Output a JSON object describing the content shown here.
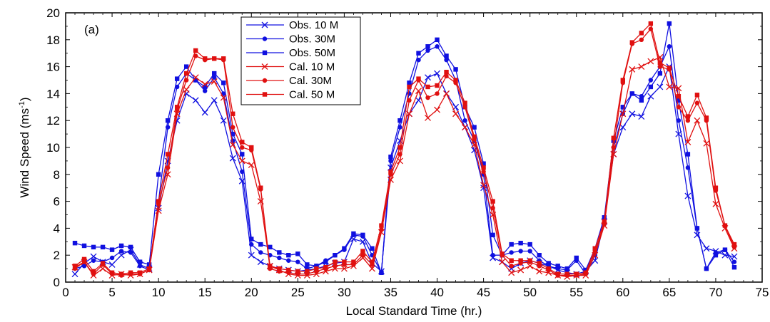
{
  "chart_data": {
    "type": "line",
    "panel_label": "(a)",
    "xlabel": "Local Standard Time (hr.)",
    "ylabel_main": "Wind Speed (ms",
    "ylabel_sup": "-1",
    "ylabel_close": ")",
    "xlim": [
      0,
      75
    ],
    "ylim": [
      0,
      20
    ],
    "xticks": [
      0,
      5,
      10,
      15,
      20,
      25,
      30,
      35,
      40,
      45,
      50,
      55,
      60,
      65,
      70,
      75
    ],
    "yticks": [
      0,
      2,
      4,
      6,
      8,
      10,
      12,
      14,
      16,
      18,
      20
    ],
    "grid": false,
    "legend_position": "top-center",
    "x": [
      1,
      2,
      3,
      4,
      5,
      6,
      7,
      8,
      9,
      10,
      11,
      12,
      13,
      14,
      15,
      16,
      17,
      18,
      19,
      20,
      21,
      22,
      23,
      24,
      25,
      26,
      27,
      28,
      29,
      30,
      31,
      32,
      33,
      34,
      35,
      36,
      37,
      38,
      39,
      40,
      41,
      42,
      43,
      44,
      45,
      46,
      47,
      48,
      49,
      50,
      51,
      52,
      53,
      54,
      55,
      56,
      57,
      58,
      59,
      60,
      61,
      62,
      63,
      64,
      65,
      66,
      67,
      68,
      69,
      70,
      71,
      72
    ],
    "series": [
      {
        "name": "Obs. 10 M",
        "color": "#1010e0",
        "marker": "x",
        "values": [
          0.6,
          1.4,
          1.9,
          1.5,
          1.3,
          2.0,
          2.4,
          1.3,
          1.0,
          5.5,
          9.0,
          12.0,
          14.0,
          13.5,
          12.6,
          13.5,
          12.0,
          9.2,
          7.5,
          2.0,
          1.5,
          1.2,
          1.0,
          0.9,
          0.8,
          0.9,
          1.0,
          1.2,
          1.4,
          1.5,
          3.2,
          3.0,
          1.4,
          0.8,
          8.5,
          10.5,
          12.5,
          13.5,
          15.2,
          15.5,
          14.0,
          13.0,
          11.5,
          9.8,
          7.0,
          1.8,
          1.5,
          1.0,
          1.4,
          1.6,
          1.4,
          1.2,
          0.9,
          0.7,
          0.6,
          0.8,
          1.6,
          4.5,
          9.5,
          11.5,
          12.5,
          12.3,
          13.8,
          14.5,
          16.0,
          11.0,
          6.4,
          3.5,
          2.5,
          2.3,
          2.0,
          1.9
        ]
      },
      {
        "name": "Obs. 30M",
        "color": "#1010e0",
        "marker": "circle",
        "values": [
          1.0,
          1.2,
          1.6,
          1.5,
          1.8,
          2.3,
          2.2,
          1.2,
          0.9,
          6.0,
          11.5,
          14.5,
          15.5,
          15.0,
          14.2,
          15.2,
          14.0,
          10.5,
          8.2,
          2.8,
          2.2,
          2.0,
          1.8,
          1.6,
          1.5,
          1.0,
          1.2,
          1.6,
          2.0,
          2.4,
          3.5,
          3.4,
          2.0,
          0.7,
          9.0,
          11.5,
          14.0,
          16.5,
          17.2,
          17.5,
          16.5,
          15.0,
          12.0,
          10.5,
          8.0,
          2.0,
          2.0,
          2.2,
          2.3,
          2.3,
          1.6,
          1.2,
          1.0,
          0.9,
          1.6,
          0.6,
          2.0,
          4.4,
          10.0,
          12.5,
          14.0,
          13.8,
          15.0,
          16.0,
          17.5,
          12.0,
          8.5,
          4.0,
          1.0,
          2.2,
          2.4,
          1.5
        ]
      },
      {
        "name": "Obs. 50M",
        "color": "#1010e0",
        "marker": "square",
        "values": [
          2.9,
          2.7,
          2.6,
          2.6,
          2.4,
          2.7,
          2.6,
          1.5,
          1.3,
          8.0,
          12.0,
          15.1,
          16.0,
          15.0,
          14.5,
          15.5,
          14.8,
          11.0,
          9.5,
          3.2,
          2.8,
          2.6,
          2.2,
          2.0,
          2.1,
          1.3,
          1.2,
          1.5,
          2.0,
          2.5,
          3.6,
          3.5,
          2.5,
          0.7,
          9.3,
          12.0,
          14.8,
          17.0,
          17.5,
          18.0,
          16.8,
          15.8,
          13.0,
          11.5,
          8.8,
          3.5,
          2.0,
          2.8,
          2.9,
          2.8,
          2.0,
          1.4,
          1.2,
          1.0,
          1.8,
          0.9,
          2.5,
          4.8,
          10.5,
          13.0,
          14.0,
          13.5,
          14.5,
          15.5,
          19.2,
          13.5,
          9.5,
          4.0,
          1.0,
          2.0,
          2.4,
          1.1
        ]
      },
      {
        "name": "Cal. 10 M",
        "color": "#e01010",
        "marker": "x",
        "values": [
          1.1,
          1.5,
          0.5,
          1.0,
          0.5,
          0.6,
          0.5,
          0.6,
          0.9,
          5.3,
          8.0,
          12.5,
          14.3,
          15.2,
          14.7,
          14.9,
          13.7,
          10.2,
          9.0,
          8.7,
          6.0,
          1.2,
          0.9,
          0.6,
          0.5,
          0.5,
          0.6,
          0.8,
          1.0,
          1.0,
          1.2,
          1.8,
          1.0,
          3.7,
          7.6,
          9.0,
          12.5,
          14.2,
          12.2,
          12.8,
          14.0,
          12.5,
          11.5,
          10.2,
          7.2,
          5.0,
          1.5,
          0.7,
          0.9,
          1.2,
          0.8,
          0.7,
          0.5,
          0.4,
          0.5,
          0.5,
          2.0,
          4.2,
          9.5,
          12.5,
          15.8,
          16.0,
          16.4,
          16.7,
          14.5,
          14.4,
          10.4,
          12.0,
          10.3,
          5.8,
          4.0,
          2.5
        ]
      },
      {
        "name": "Cal. 30M",
        "color": "#e01010",
        "marker": "circle",
        "values": [
          1.0,
          1.5,
          0.6,
          1.3,
          0.6,
          0.5,
          0.6,
          0.6,
          0.9,
          5.8,
          8.5,
          12.8,
          15.0,
          16.8,
          16.5,
          16.6,
          16.5,
          11.5,
          10.0,
          9.8,
          6.9,
          1.0,
          0.8,
          0.7,
          0.6,
          0.6,
          0.8,
          1.0,
          1.2,
          1.3,
          1.3,
          2.0,
          1.3,
          3.9,
          8.0,
          9.5,
          13.5,
          15.0,
          13.7,
          14.0,
          15.3,
          14.8,
          13.0,
          10.6,
          8.2,
          5.5,
          2.0,
          1.2,
          1.4,
          1.5,
          1.2,
          0.9,
          0.5,
          0.5,
          0.5,
          0.6,
          2.3,
          4.3,
          10.0,
          14.8,
          17.7,
          18.0,
          18.8,
          16.0,
          15.8,
          13.0,
          12.0,
          13.3,
          12.0,
          6.8,
          4.2,
          2.6
        ]
      },
      {
        "name": "Cal. 50 M",
        "color": "#e01010",
        "marker": "square",
        "values": [
          1.2,
          1.7,
          0.8,
          1.4,
          0.7,
          0.6,
          0.7,
          0.7,
          1.0,
          6.0,
          9.5,
          13.0,
          15.5,
          17.2,
          16.6,
          16.6,
          16.6,
          12.5,
          10.4,
          10.0,
          7.0,
          1.2,
          1.0,
          0.9,
          0.8,
          0.8,
          1.0,
          1.1,
          1.5,
          1.5,
          1.5,
          2.3,
          1.5,
          4.2,
          8.2,
          10.0,
          14.5,
          15.1,
          14.5,
          14.6,
          15.6,
          15.0,
          13.3,
          10.8,
          8.5,
          6.0,
          2.1,
          1.6,
          1.6,
          1.6,
          1.4,
          1.0,
          0.6,
          0.6,
          0.6,
          0.7,
          2.5,
          4.5,
          10.7,
          15.0,
          17.8,
          18.5,
          19.2,
          16.3,
          15.9,
          13.8,
          12.3,
          13.9,
          12.2,
          7.0,
          4.2,
          2.8
        ]
      }
    ]
  }
}
